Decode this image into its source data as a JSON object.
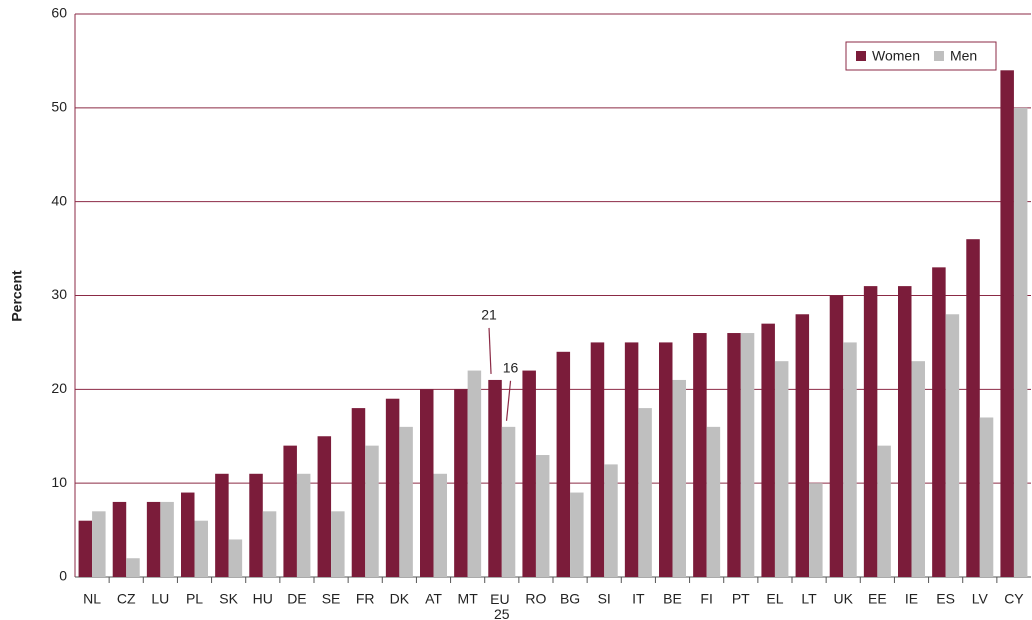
{
  "chart_data": {
    "type": "bar",
    "ylabel": "Percent",
    "categories": [
      "NL",
      "CZ",
      "LU",
      "PL",
      "SK",
      "HU",
      "DE",
      "SE",
      "FR",
      "DK",
      "AT",
      "MT",
      "EU 25",
      "RO",
      "BG",
      "SI",
      "IT",
      "BE",
      "FI",
      "PT",
      "EL",
      "LT",
      "UK",
      "EE",
      "IE",
      "ES",
      "LV",
      "CY"
    ],
    "series": [
      {
        "name": "Women",
        "color": "#7b1c3a",
        "values": [
          6,
          8,
          8,
          9,
          11,
          11,
          14,
          15,
          18,
          19,
          20,
          20,
          21,
          22,
          24,
          25,
          25,
          25,
          26,
          26,
          27,
          28,
          30,
          31,
          31,
          33,
          36,
          54
        ]
      },
      {
        "name": "Men",
        "color": "#bfbfbf",
        "values": [
          7,
          2,
          8,
          6,
          4,
          7,
          11,
          7,
          14,
          16,
          11,
          22,
          16,
          13,
          9,
          12,
          18,
          21,
          16,
          26,
          23,
          10,
          25,
          14,
          23,
          28,
          17,
          50
        ]
      }
    ],
    "annotations": [
      {
        "text": "21",
        "category": "EU 25",
        "series": "Women"
      },
      {
        "text": "16",
        "category": "EU 25",
        "series": "Men"
      }
    ],
    "ylim": [
      0,
      60
    ],
    "yticks": [
      0,
      10,
      20,
      30,
      40,
      50,
      60
    ],
    "grid": true,
    "legend": "top-right"
  }
}
